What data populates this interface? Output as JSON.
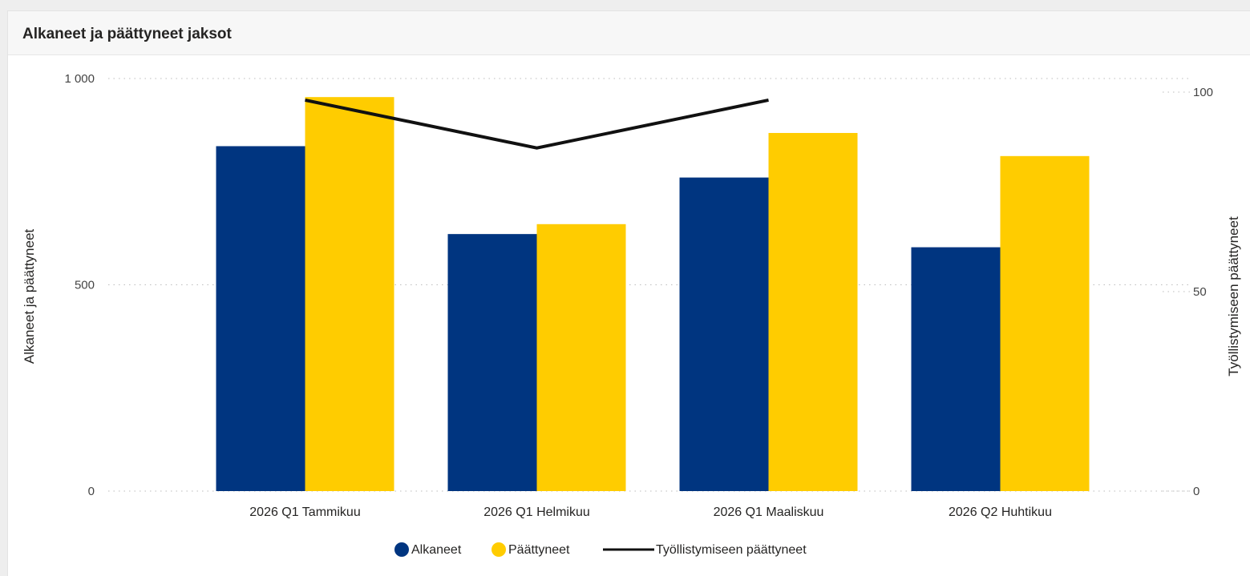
{
  "panel": {
    "title": "Alkaneet ja päättyneet jaksot"
  },
  "chart_data": {
    "type": "bar",
    "title": "Alkaneet ja päättyneet jaksot",
    "categories": [
      "2026 Q1 Tammikuu",
      "2026 Q1 Helmikuu",
      "2026 Q1 Maaliskuu",
      "2026 Q2 Huhtikuu"
    ],
    "series": [
      {
        "name": "Alkaneet",
        "type": "bar",
        "axis": "left",
        "color": "#003580",
        "values": [
          836,
          623,
          760,
          591
        ]
      },
      {
        "name": "Päättyneet",
        "type": "bar",
        "axis": "left",
        "color": "#ffcc00",
        "values": [
          955,
          647,
          868,
          812
        ]
      },
      {
        "name": "Työllistymiseen päättyneet",
        "type": "line",
        "axis": "right",
        "color": "#111111",
        "values": [
          98,
          86,
          98,
          null
        ]
      }
    ],
    "ylabel_left": "Alkaneet ja päättyneet",
    "ylabel_right": "Työllistymiseen päättyneet",
    "ylim_left": [
      0,
      1000
    ],
    "ylim_right": [
      0,
      100
    ],
    "yticks_left": [
      {
        "value": 0,
        "label": "0"
      },
      {
        "value": 500,
        "label": "500"
      },
      {
        "value": 1000,
        "label": "1 000"
      }
    ],
    "yticks_right": [
      {
        "value": 0,
        "label": "0"
      },
      {
        "value": 50,
        "label": "50"
      },
      {
        "value": 100,
        "label": "100"
      }
    ],
    "grid": true,
    "legend_position": "bottom-center"
  }
}
